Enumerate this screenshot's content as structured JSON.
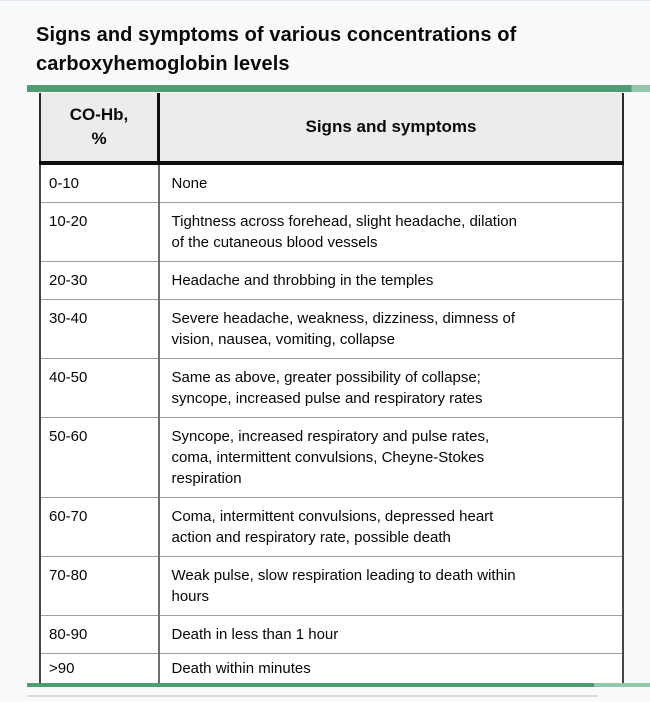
{
  "page": {
    "title": "Signs and symptoms of various concentrations of\ncarboxyhemoglobin levels",
    "background_color": "#f8f9fb"
  },
  "accent": {
    "green": "#4e9c72",
    "green_light": "#93c7ab",
    "header_background": "#ececeb"
  },
  "table": {
    "columns": [
      "CO-Hb,\n%",
      "Signs and symptoms"
    ],
    "rows": [
      {
        "co_hb": "0-10",
        "symptoms": "None"
      },
      {
        "co_hb": "10-20",
        "symptoms": "Tightness across forehead, slight headache, dilation\nof the cutaneous blood vessels"
      },
      {
        "co_hb": "20-30",
        "symptoms": "Headache and throbbing in the temples"
      },
      {
        "co_hb": "30-40",
        "symptoms": "Severe headache, weakness, dizziness, dimness of\nvision, nausea, vomiting, collapse"
      },
      {
        "co_hb": "40-50",
        "symptoms": "Same as above, greater possibility of collapse;\nsyncope, increased pulse and respiratory rates"
      },
      {
        "co_hb": "50-60",
        "symptoms": "Syncope, increased respiratory and pulse rates,\ncoma, intermittent convulsions, Cheyne-Stokes\nrespiration"
      },
      {
        "co_hb": "60-70",
        "symptoms": "Coma, intermittent convulsions, depressed heart\naction and respiratory rate, possible death"
      },
      {
        "co_hb": "70-80",
        "symptoms": "Weak pulse, slow respiration leading to death within\nhours"
      },
      {
        "co_hb": "80-90",
        "symptoms": "Death in less than 1 hour"
      },
      {
        "co_hb": ">90",
        "symptoms": "Death within minutes"
      }
    ]
  }
}
